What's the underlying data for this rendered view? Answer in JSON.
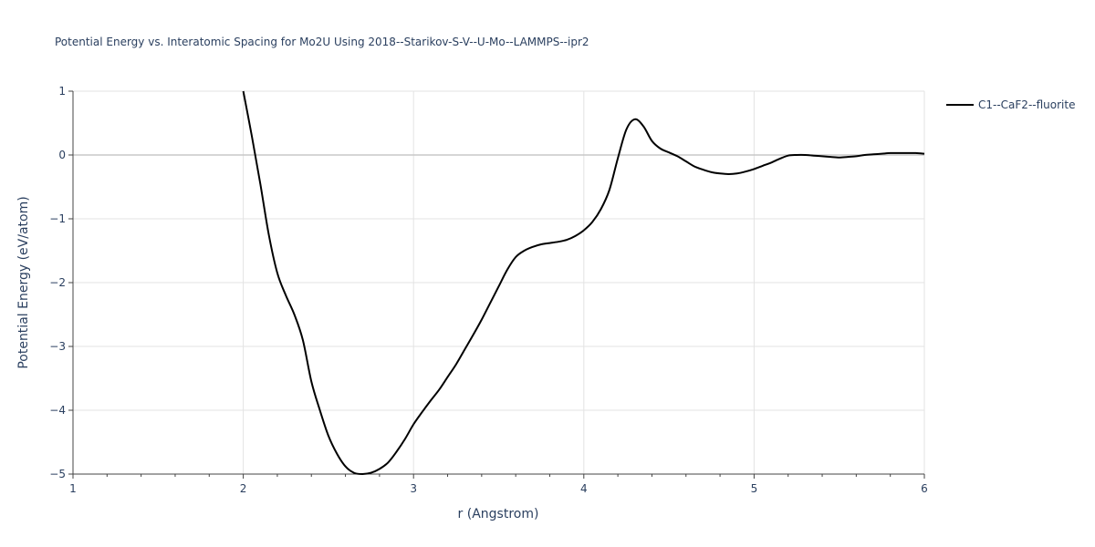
{
  "chart_data": {
    "type": "line",
    "title": "Potential Energy vs. Interatomic Spacing for Mo2U Using 2018--Starikov-S-V--U-Mo--LAMMPS--ipr2",
    "xlabel": "r (Angstrom)",
    "ylabel": "Potential Energy (eV/atom)",
    "xlim": [
      1,
      6
    ],
    "ylim": [
      -5,
      1
    ],
    "x_ticks": [
      "1",
      "2",
      "3",
      "4",
      "5",
      "6"
    ],
    "y_ticks": [
      "1",
      "0",
      "−1",
      "−2",
      "−3",
      "−4",
      "−5"
    ],
    "x_tick_values": [
      1,
      2,
      3,
      4,
      5,
      6
    ],
    "y_tick_values": [
      1,
      0,
      -1,
      -2,
      -3,
      -4,
      -5
    ],
    "grid": true,
    "legend_position": "top-right",
    "series": [
      {
        "name": "C1--CaF2--fluorite",
        "color": "#000000",
        "x": [
          2.0,
          2.05,
          2.1,
          2.15,
          2.2,
          2.25,
          2.3,
          2.35,
          2.4,
          2.45,
          2.5,
          2.55,
          2.6,
          2.65,
          2.7,
          2.75,
          2.8,
          2.85,
          2.9,
          2.95,
          3.0,
          3.05,
          3.1,
          3.15,
          3.2,
          3.25,
          3.3,
          3.35,
          3.4,
          3.45,
          3.5,
          3.55,
          3.6,
          3.65,
          3.7,
          3.75,
          3.8,
          3.85,
          3.9,
          3.95,
          4.0,
          4.05,
          4.1,
          4.15,
          4.2,
          4.25,
          4.3,
          4.35,
          4.4,
          4.45,
          4.5,
          4.55,
          4.6,
          4.65,
          4.7,
          4.75,
          4.8,
          4.85,
          4.9,
          4.95,
          5.0,
          5.05,
          5.1,
          5.15,
          5.2,
          5.25,
          5.3,
          5.35,
          5.4,
          5.45,
          5.5,
          5.55,
          5.6,
          5.65,
          5.7,
          5.75,
          5.8,
          5.85,
          5.9,
          5.95,
          6.0
        ],
        "values": [
          1.0,
          0.3,
          -0.45,
          -1.25,
          -1.85,
          -2.2,
          -2.5,
          -2.9,
          -3.55,
          -4.0,
          -4.4,
          -4.68,
          -4.88,
          -4.98,
          -5.0,
          -4.98,
          -4.92,
          -4.82,
          -4.65,
          -4.45,
          -4.22,
          -4.03,
          -3.85,
          -3.68,
          -3.48,
          -3.28,
          -3.05,
          -2.82,
          -2.58,
          -2.32,
          -2.06,
          -1.8,
          -1.6,
          -1.5,
          -1.44,
          -1.4,
          -1.38,
          -1.36,
          -1.33,
          -1.27,
          -1.18,
          -1.05,
          -0.85,
          -0.55,
          -0.05,
          0.4,
          0.56,
          0.45,
          0.22,
          0.1,
          0.04,
          -0.02,
          -0.1,
          -0.18,
          -0.23,
          -0.27,
          -0.29,
          -0.3,
          -0.29,
          -0.26,
          -0.22,
          -0.17,
          -0.12,
          -0.06,
          -0.01,
          0.0,
          0.0,
          -0.01,
          -0.02,
          -0.03,
          -0.04,
          -0.03,
          -0.02,
          0.0,
          0.01,
          0.02,
          0.03,
          0.03,
          0.03,
          0.03,
          0.02
        ]
      }
    ]
  }
}
